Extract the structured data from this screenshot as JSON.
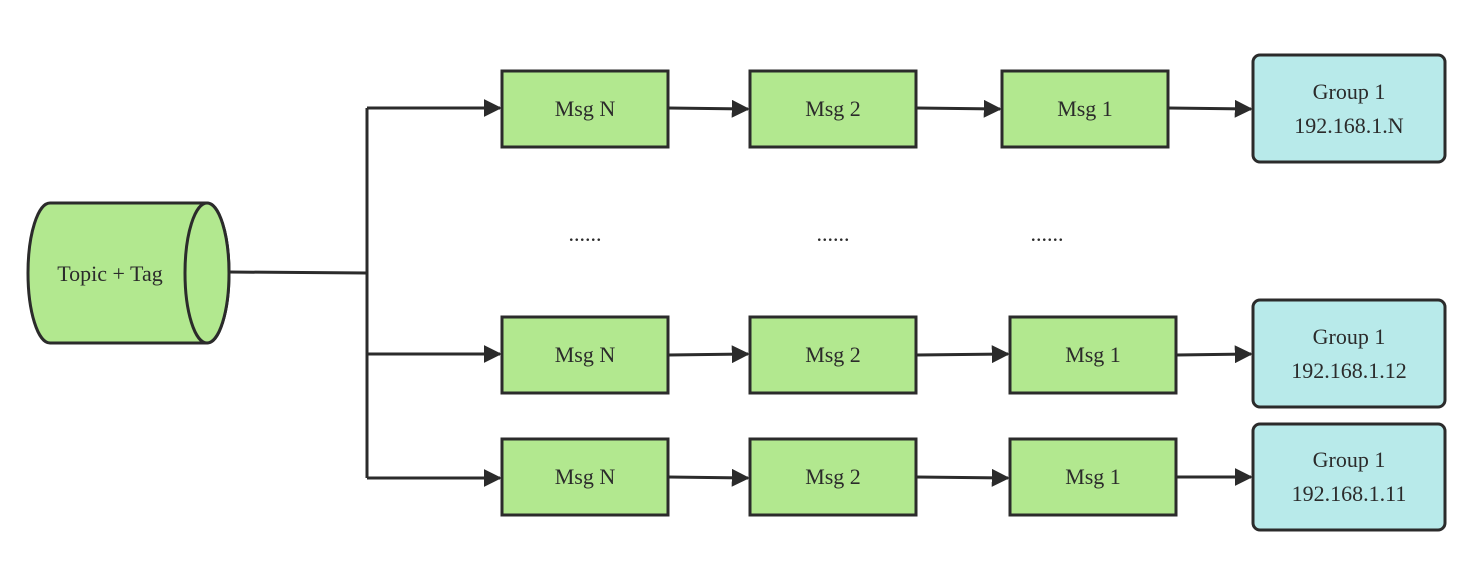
{
  "diagram": {
    "source": {
      "label": "Topic + Tag"
    },
    "queues": [
      {
        "messages": [
          "Msg N",
          "Msg 2",
          "Msg 1"
        ],
        "consumer": {
          "line1": "Group 1",
          "line2": "192.168.1.N"
        }
      },
      {
        "messages": [
          "Msg N",
          "Msg 2",
          "Msg 1"
        ],
        "consumer": {
          "line1": "Group 1",
          "line2": "192.168.1.12"
        }
      },
      {
        "messages": [
          "Msg N",
          "Msg 2",
          "Msg 1"
        ],
        "consumer": {
          "line1": "Group 1",
          "line2": "192.168.1.11"
        }
      }
    ],
    "ellipsis": [
      "......",
      "......",
      "......"
    ],
    "colors": {
      "message_fill": "#b2e88f",
      "consumer_fill": "#b8eaea",
      "stroke": "#2b2b2b"
    }
  }
}
